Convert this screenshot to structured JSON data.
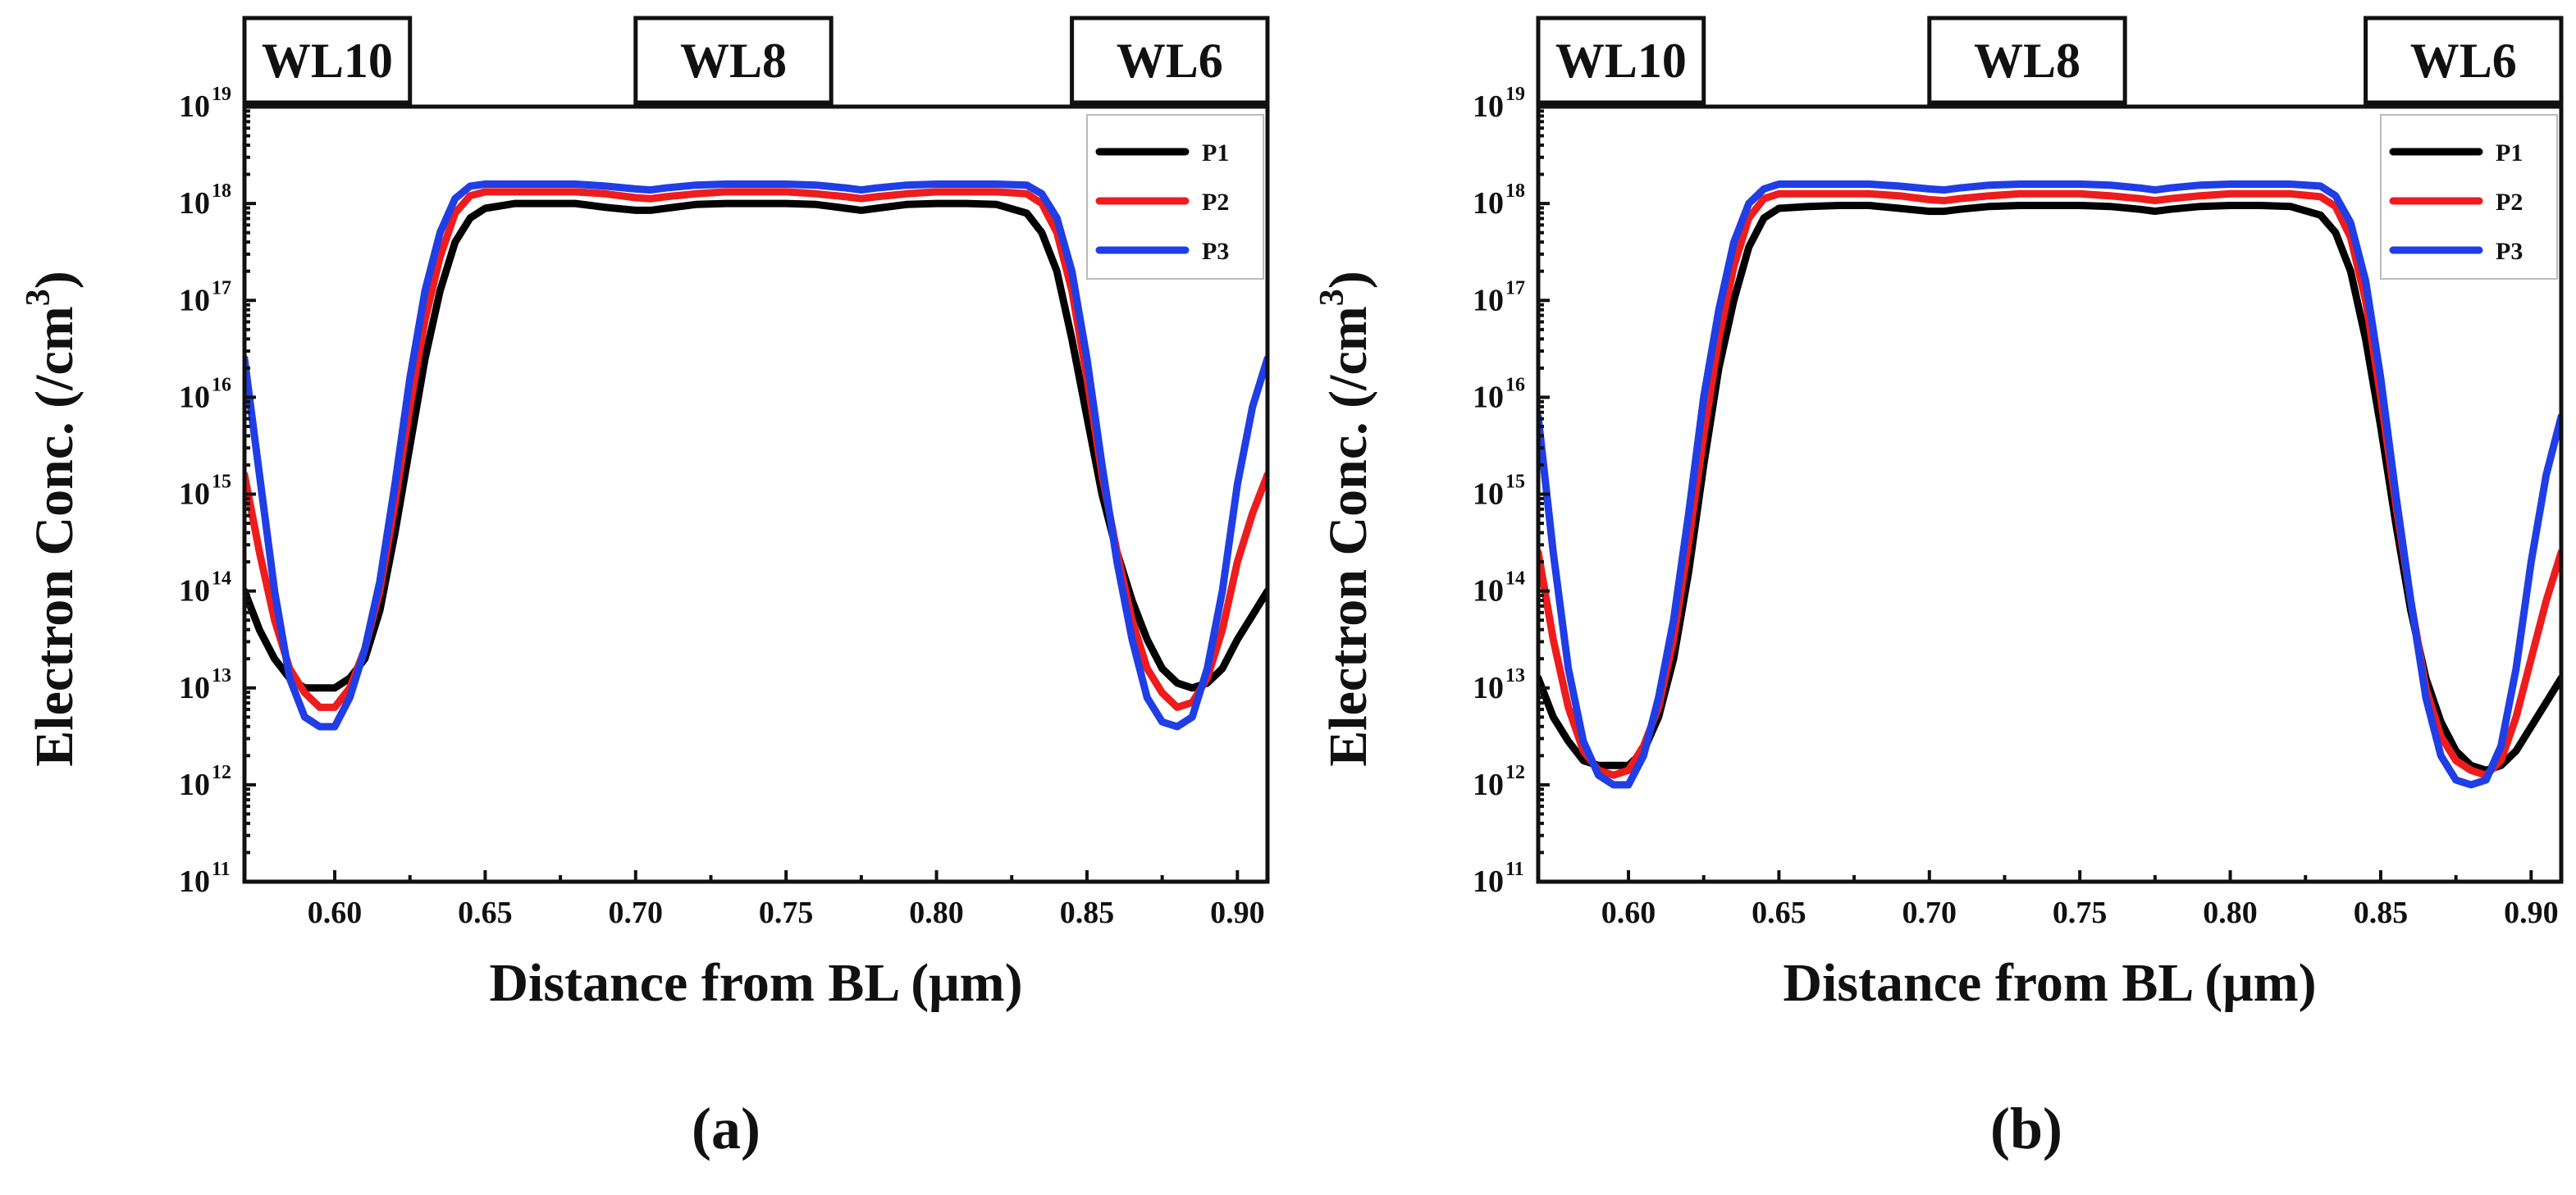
{
  "chart_data": [
    {
      "type": "line",
      "panel_label": "(a)",
      "xlabel": "Distance from BL (μm)",
      "ylabel": "Electron Conc. (/cm",
      "ylabel_sup": "3",
      "ylabel_close": ")",
      "xlim": [
        0.57,
        0.91
      ],
      "ylim_log10": [
        11,
        19
      ],
      "x_ticks": [
        0.6,
        0.65,
        0.7,
        0.75,
        0.8,
        0.85,
        0.9
      ],
      "x_tick_labels": [
        "0.60",
        "0.65",
        "0.70",
        "0.75",
        "0.80",
        "0.85",
        "0.90"
      ],
      "y_ticks_log10": [
        11,
        12,
        13,
        14,
        15,
        16,
        17,
        18,
        19
      ],
      "y_tick_base": "10",
      "y_tick_exponents": [
        "11",
        "12",
        "13",
        "14",
        "15",
        "16",
        "17",
        "18",
        "19"
      ],
      "wordlines": [
        {
          "label": "WL10",
          "x_range": [
            0.57,
            0.625
          ]
        },
        {
          "label": "WL8",
          "x_range": [
            0.7,
            0.765
          ]
        },
        {
          "label": "WL6",
          "x_range": [
            0.845,
            0.91
          ]
        }
      ],
      "legend_position": "top-right",
      "series": [
        {
          "name": "P1",
          "color": "#000000",
          "x": [
            0.57,
            0.575,
            0.58,
            0.585,
            0.59,
            0.595,
            0.6,
            0.605,
            0.61,
            0.615,
            0.62,
            0.625,
            0.63,
            0.635,
            0.64,
            0.645,
            0.65,
            0.66,
            0.67,
            0.68,
            0.69,
            0.7,
            0.705,
            0.71,
            0.72,
            0.73,
            0.74,
            0.75,
            0.76,
            0.77,
            0.775,
            0.78,
            0.79,
            0.8,
            0.81,
            0.82,
            0.83,
            0.835,
            0.84,
            0.845,
            0.85,
            0.855,
            0.86,
            0.865,
            0.87,
            0.875,
            0.88,
            0.885,
            0.89,
            0.895,
            0.9,
            0.905,
            0.91
          ],
          "log10": [
            14.0,
            13.6,
            13.3,
            13.1,
            13.0,
            13.0,
            13.0,
            13.1,
            13.3,
            13.8,
            14.6,
            15.5,
            16.4,
            17.1,
            17.6,
            17.85,
            17.95,
            18.0,
            18.0,
            18.0,
            17.96,
            17.93,
            17.93,
            17.95,
            17.99,
            18.0,
            18.0,
            18.0,
            17.99,
            17.95,
            17.93,
            17.95,
            17.99,
            18.0,
            18.0,
            17.99,
            17.9,
            17.7,
            17.3,
            16.6,
            15.8,
            15.0,
            14.4,
            13.9,
            13.5,
            13.2,
            13.05,
            13.0,
            13.05,
            13.2,
            13.5,
            13.75,
            14.0
          ]
        },
        {
          "name": "P2",
          "color": "#ee1c1c",
          "x": [
            0.57,
            0.575,
            0.58,
            0.585,
            0.59,
            0.595,
            0.6,
            0.605,
            0.61,
            0.615,
            0.62,
            0.625,
            0.63,
            0.635,
            0.64,
            0.645,
            0.65,
            0.66,
            0.67,
            0.68,
            0.69,
            0.7,
            0.705,
            0.71,
            0.72,
            0.73,
            0.74,
            0.75,
            0.76,
            0.77,
            0.775,
            0.78,
            0.79,
            0.8,
            0.81,
            0.82,
            0.83,
            0.835,
            0.84,
            0.845,
            0.85,
            0.855,
            0.86,
            0.865,
            0.87,
            0.875,
            0.88,
            0.885,
            0.89,
            0.895,
            0.9,
            0.905,
            0.91
          ],
          "log10": [
            15.2,
            14.4,
            13.7,
            13.2,
            12.95,
            12.8,
            12.8,
            13.0,
            13.4,
            14.0,
            14.9,
            15.9,
            16.8,
            17.45,
            17.9,
            18.08,
            18.12,
            18.12,
            18.12,
            18.12,
            18.1,
            18.06,
            18.05,
            18.07,
            18.1,
            18.12,
            18.12,
            18.12,
            18.1,
            18.07,
            18.05,
            18.07,
            18.1,
            18.12,
            18.12,
            18.12,
            18.1,
            18.0,
            17.7,
            17.1,
            16.2,
            15.2,
            14.4,
            13.7,
            13.2,
            12.95,
            12.8,
            12.85,
            13.1,
            13.6,
            14.3,
            14.8,
            15.2
          ]
        },
        {
          "name": "P3",
          "color": "#1f3ee6",
          "x": [
            0.57,
            0.575,
            0.58,
            0.585,
            0.59,
            0.595,
            0.6,
            0.605,
            0.61,
            0.615,
            0.62,
            0.625,
            0.63,
            0.635,
            0.64,
            0.645,
            0.65,
            0.66,
            0.67,
            0.68,
            0.69,
            0.7,
            0.705,
            0.71,
            0.72,
            0.73,
            0.74,
            0.75,
            0.76,
            0.77,
            0.775,
            0.78,
            0.79,
            0.8,
            0.81,
            0.82,
            0.83,
            0.835,
            0.84,
            0.845,
            0.85,
            0.855,
            0.86,
            0.865,
            0.87,
            0.875,
            0.88,
            0.885,
            0.89,
            0.895,
            0.9,
            0.905,
            0.91
          ],
          "log10": [
            16.4,
            15.2,
            14.0,
            13.1,
            12.7,
            12.6,
            12.6,
            12.9,
            13.4,
            14.1,
            15.1,
            16.2,
            17.1,
            17.7,
            18.05,
            18.18,
            18.2,
            18.2,
            18.2,
            18.2,
            18.18,
            18.15,
            18.14,
            18.16,
            18.19,
            18.2,
            18.2,
            18.2,
            18.19,
            18.16,
            18.14,
            18.16,
            18.19,
            18.2,
            18.2,
            18.2,
            18.19,
            18.1,
            17.85,
            17.3,
            16.4,
            15.3,
            14.3,
            13.5,
            12.9,
            12.65,
            12.6,
            12.7,
            13.2,
            14.0,
            15.1,
            15.9,
            16.4
          ]
        }
      ]
    },
    {
      "type": "line",
      "panel_label": "(b)",
      "xlabel": "Distance from BL (μm)",
      "ylabel": "Electron Conc. (/cm",
      "ylabel_sup": "3",
      "ylabel_close": ")",
      "xlim": [
        0.57,
        0.91
      ],
      "ylim_log10": [
        11,
        19
      ],
      "x_ticks": [
        0.6,
        0.65,
        0.7,
        0.75,
        0.8,
        0.85,
        0.9
      ],
      "x_tick_labels": [
        "0.60",
        "0.65",
        "0.70",
        "0.75",
        "0.80",
        "0.85",
        "0.90"
      ],
      "y_ticks_log10": [
        11,
        12,
        13,
        14,
        15,
        16,
        17,
        18,
        19
      ],
      "y_tick_base": "10",
      "y_tick_exponents": [
        "11",
        "12",
        "13",
        "14",
        "15",
        "16",
        "17",
        "18",
        "19"
      ],
      "wordlines": [
        {
          "label": "WL10",
          "x_range": [
            0.57,
            0.625
          ]
        },
        {
          "label": "WL8",
          "x_range": [
            0.7,
            0.765
          ]
        },
        {
          "label": "WL6",
          "x_range": [
            0.845,
            0.91
          ]
        }
      ],
      "legend_position": "top-right",
      "series": [
        {
          "name": "P1",
          "color": "#000000",
          "x": [
            0.57,
            0.575,
            0.58,
            0.585,
            0.59,
            0.595,
            0.6,
            0.605,
            0.61,
            0.615,
            0.62,
            0.625,
            0.63,
            0.635,
            0.64,
            0.645,
            0.65,
            0.66,
            0.67,
            0.68,
            0.69,
            0.7,
            0.705,
            0.71,
            0.72,
            0.73,
            0.74,
            0.75,
            0.76,
            0.77,
            0.775,
            0.78,
            0.79,
            0.8,
            0.81,
            0.82,
            0.83,
            0.835,
            0.84,
            0.845,
            0.85,
            0.855,
            0.86,
            0.865,
            0.87,
            0.875,
            0.88,
            0.885,
            0.89,
            0.895,
            0.9,
            0.905,
            0.91
          ],
          "log10": [
            13.1,
            12.7,
            12.45,
            12.25,
            12.2,
            12.2,
            12.2,
            12.35,
            12.7,
            13.3,
            14.2,
            15.3,
            16.3,
            17.0,
            17.55,
            17.85,
            17.95,
            17.97,
            17.98,
            17.98,
            17.95,
            17.92,
            17.92,
            17.94,
            17.97,
            17.98,
            17.98,
            17.98,
            17.97,
            17.94,
            17.92,
            17.94,
            17.97,
            17.98,
            17.98,
            17.97,
            17.88,
            17.7,
            17.3,
            16.6,
            15.7,
            14.7,
            13.8,
            13.1,
            12.65,
            12.35,
            12.2,
            12.15,
            12.2,
            12.35,
            12.6,
            12.85,
            13.1
          ]
        },
        {
          "name": "P2",
          "color": "#ee1c1c",
          "x": [
            0.57,
            0.575,
            0.58,
            0.585,
            0.59,
            0.595,
            0.6,
            0.605,
            0.61,
            0.615,
            0.62,
            0.625,
            0.63,
            0.635,
            0.64,
            0.645,
            0.65,
            0.66,
            0.67,
            0.68,
            0.69,
            0.7,
            0.705,
            0.71,
            0.72,
            0.73,
            0.74,
            0.75,
            0.76,
            0.77,
            0.775,
            0.78,
            0.79,
            0.8,
            0.81,
            0.82,
            0.83,
            0.835,
            0.84,
            0.845,
            0.85,
            0.855,
            0.86,
            0.865,
            0.87,
            0.875,
            0.88,
            0.885,
            0.89,
            0.895,
            0.9,
            0.905,
            0.91
          ],
          "log10": [
            14.4,
            13.5,
            12.8,
            12.35,
            12.15,
            12.1,
            12.15,
            12.4,
            12.8,
            13.5,
            14.5,
            15.6,
            16.6,
            17.35,
            17.85,
            18.05,
            18.1,
            18.1,
            18.1,
            18.1,
            18.08,
            18.04,
            18.03,
            18.05,
            18.08,
            18.1,
            18.1,
            18.1,
            18.08,
            18.05,
            18.03,
            18.05,
            18.08,
            18.1,
            18.1,
            18.1,
            18.07,
            17.97,
            17.65,
            17.0,
            16.0,
            14.9,
            13.9,
            13.0,
            12.5,
            12.25,
            12.15,
            12.1,
            12.25,
            12.7,
            13.3,
            13.9,
            14.4
          ]
        },
        {
          "name": "P3",
          "color": "#1f3ee6",
          "x": [
            0.57,
            0.575,
            0.58,
            0.585,
            0.59,
            0.595,
            0.6,
            0.605,
            0.61,
            0.615,
            0.62,
            0.625,
            0.63,
            0.635,
            0.64,
            0.645,
            0.65,
            0.66,
            0.67,
            0.68,
            0.69,
            0.7,
            0.705,
            0.71,
            0.72,
            0.73,
            0.74,
            0.75,
            0.76,
            0.77,
            0.775,
            0.78,
            0.79,
            0.8,
            0.81,
            0.82,
            0.83,
            0.835,
            0.84,
            0.845,
            0.85,
            0.855,
            0.86,
            0.865,
            0.87,
            0.875,
            0.88,
            0.885,
            0.89,
            0.895,
            0.9,
            0.905,
            0.91
          ],
          "log10": [
            15.8,
            14.4,
            13.2,
            12.45,
            12.1,
            12.0,
            12.0,
            12.3,
            12.9,
            13.7,
            14.8,
            16.0,
            16.9,
            17.6,
            18.0,
            18.15,
            18.2,
            18.2,
            18.2,
            18.2,
            18.18,
            18.15,
            18.14,
            18.16,
            18.19,
            18.2,
            18.2,
            18.2,
            18.19,
            18.16,
            18.14,
            18.16,
            18.19,
            18.2,
            18.2,
            18.2,
            18.18,
            18.08,
            17.8,
            17.2,
            16.2,
            15.0,
            13.9,
            12.9,
            12.3,
            12.05,
            12.0,
            12.05,
            12.4,
            13.2,
            14.3,
            15.2,
            15.8
          ]
        }
      ]
    }
  ]
}
